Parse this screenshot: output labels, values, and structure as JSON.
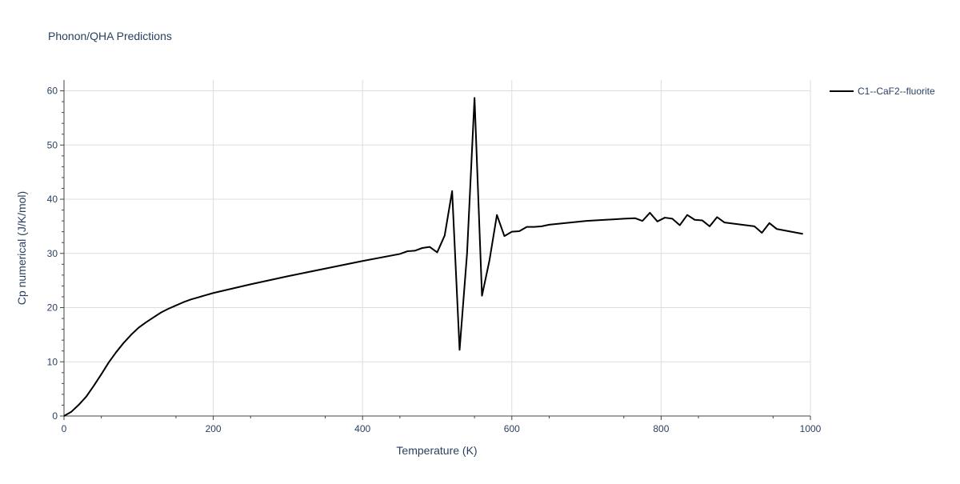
{
  "chart_data": {
    "type": "line",
    "title": "Phonon/QHA Predictions",
    "xlabel": "Temperature (K)",
    "ylabel": "Cp numerical (J/K/mol)",
    "xlim": [
      0,
      1000
    ],
    "ylim": [
      0,
      62
    ],
    "x_ticks": [
      0,
      200,
      400,
      600,
      800,
      1000
    ],
    "y_ticks": [
      0,
      10,
      20,
      30,
      40,
      50,
      60
    ],
    "grid": true,
    "legend_position": "top-right",
    "series": [
      {
        "name": "C1--CaF2--fluorite",
        "color": "#000000",
        "x": [
          0,
          10,
          20,
          30,
          40,
          50,
          60,
          70,
          80,
          90,
          100,
          110,
          120,
          130,
          140,
          150,
          160,
          170,
          180,
          190,
          200,
          250,
          300,
          350,
          400,
          450,
          460,
          470,
          480,
          490,
          500,
          510,
          520,
          530,
          540,
          550,
          560,
          570,
          580,
          590,
          600,
          610,
          620,
          630,
          640,
          650,
          700,
          750,
          765,
          775,
          785,
          795,
          805,
          815,
          825,
          835,
          845,
          855,
          865,
          875,
          885,
          925,
          935,
          945,
          955,
          990
        ],
        "y": [
          0,
          0.8,
          2.1,
          3.6,
          5.6,
          7.7,
          9.9,
          11.8,
          13.5,
          15.0,
          16.3,
          17.3,
          18.2,
          19.1,
          19.8,
          20.4,
          21.0,
          21.5,
          21.9,
          22.3,
          22.7,
          24.3,
          25.8,
          27.2,
          28.6,
          29.9,
          30.4,
          30.5,
          31.0,
          31.2,
          30.2,
          33.3,
          41.5,
          12.2,
          30.0,
          58.7,
          22.2,
          28.7,
          37.1,
          33.2,
          34.0,
          34.1,
          34.9,
          34.9,
          35.0,
          35.3,
          36.0,
          36.4,
          36.5,
          36.0,
          37.5,
          35.9,
          36.6,
          36.4,
          35.2,
          37.1,
          36.2,
          36.1,
          35.0,
          36.7,
          35.7,
          35.0,
          33.8,
          35.6,
          34.5,
          33.6
        ]
      }
    ]
  }
}
